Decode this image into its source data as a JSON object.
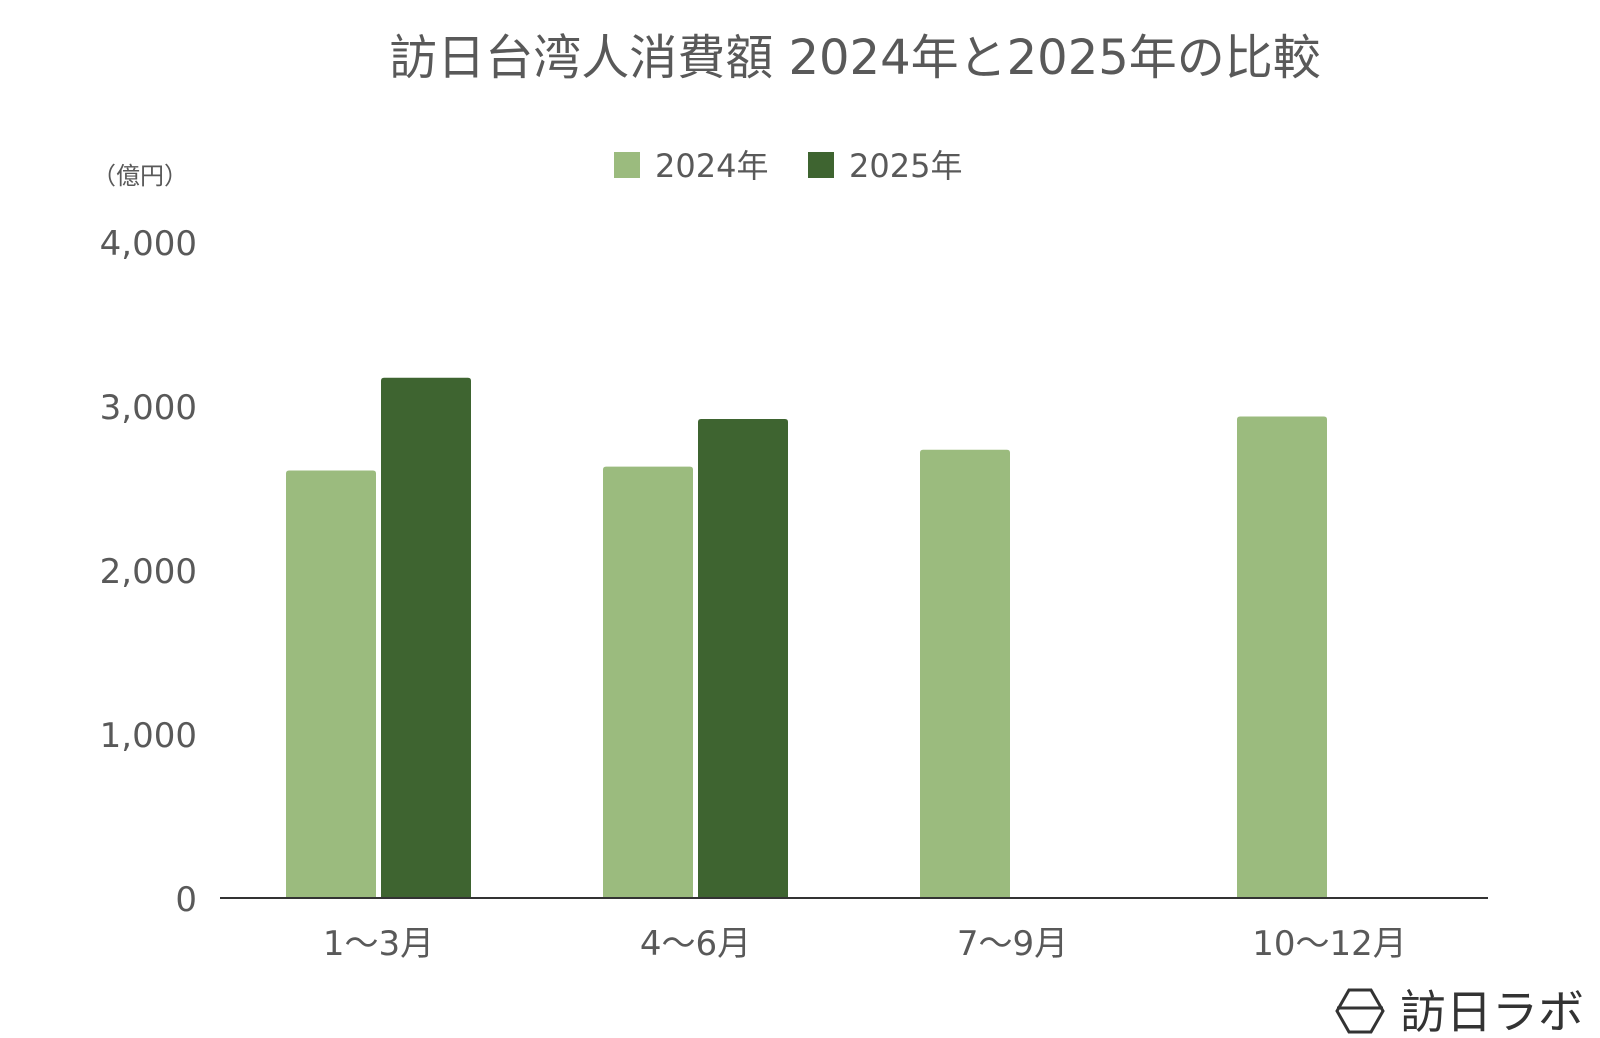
{
  "chart_data": {
    "type": "bar",
    "title": "訪日台湾人消費額 2024年と2025年の比較",
    "unit_label": "（億円）",
    "categories": [
      "1～3月",
      "4～6月",
      "7～9月",
      "10～12月"
    ],
    "series": [
      {
        "name": "2024年",
        "color": "#9bbb7e",
        "values": [
          2607,
          2630,
          2733,
          2936
        ]
      },
      {
        "name": "2025年",
        "color": "#3e6430",
        "values": [
          3172,
          2921,
          null,
          null
        ]
      }
    ],
    "ylim": [
      0,
      4000
    ],
    "yticks": [
      0,
      1000,
      2000,
      3000,
      4000
    ],
    "ytick_labels": [
      "0",
      "1,000",
      "2,000",
      "3,000",
      "4,000"
    ],
    "grid": false,
    "legend_position": "top-center"
  },
  "brand": {
    "name": "訪日ラボ",
    "icon": "hexagon-logo-icon"
  }
}
